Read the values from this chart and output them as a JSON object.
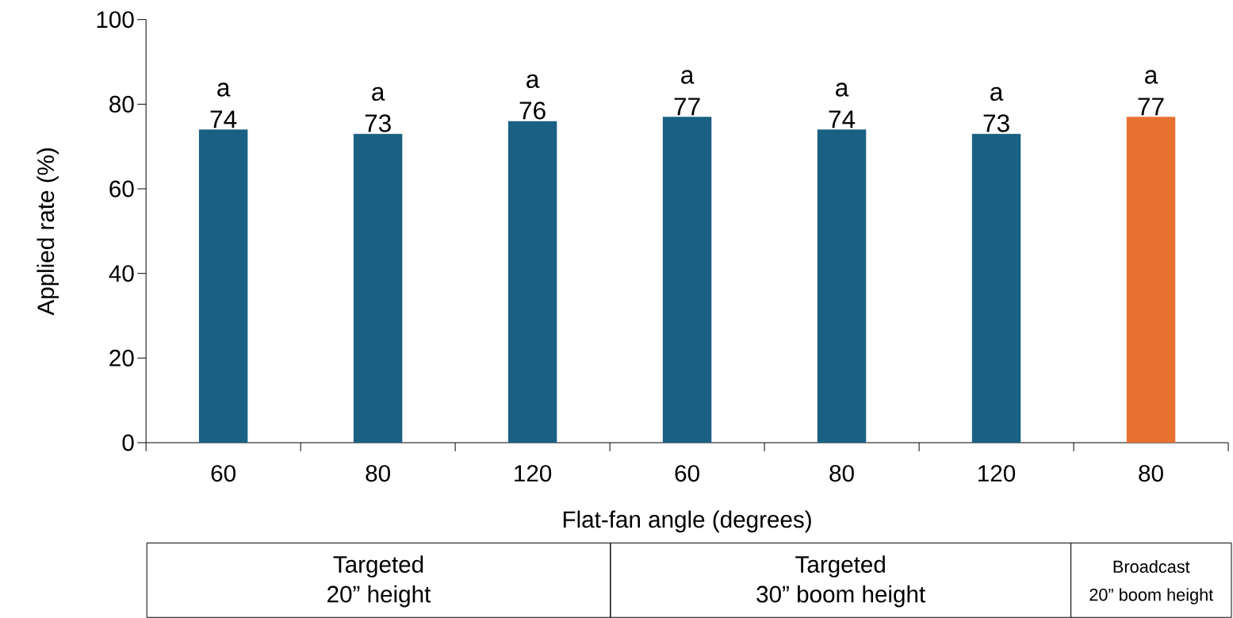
{
  "chart_data": {
    "type": "bar",
    "xlabel": "Flat-fan angle (degrees)",
    "ylabel": "Applied rate (%)",
    "categories": [
      "60",
      "80",
      "120",
      "60",
      "80",
      "120",
      "80"
    ],
    "values": [
      74,
      73,
      76,
      77,
      74,
      73,
      77
    ],
    "colors": [
      "#1a6082",
      "#1a6082",
      "#1a6082",
      "#1a6082",
      "#1a6082",
      "#1a6082",
      "#e87130"
    ],
    "ylim": [
      0,
      100
    ],
    "yticks": [
      0,
      20,
      40,
      60,
      80,
      100
    ],
    "grid": false,
    "data_labels": true,
    "annotations": [
      "a",
      "a",
      "a",
      "a",
      "a",
      "a",
      "a",
      "Targeted",
      "20” height",
      "Targeted",
      "30” boom height",
      "Broadcast",
      "20” boom height"
    ]
  }
}
